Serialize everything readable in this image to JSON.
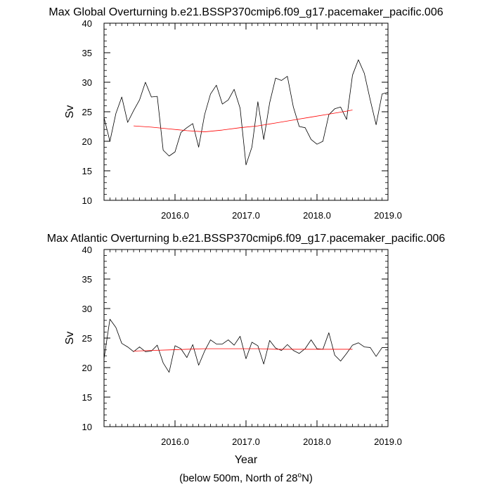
{
  "chart_data": [
    {
      "type": "line",
      "title": "Max Global Overturning b.e21.BSSP370cmip6.f09_g17.pacemaker_pacific.006",
      "xlabel": "",
      "ylabel": "Sv",
      "xlim": [
        2015.0,
        2019.0
      ],
      "ylim": [
        10,
        40
      ],
      "xticks": [
        2016.0,
        2017.0,
        2018.0,
        2019.0
      ],
      "xtick_labels": [
        "2016.0",
        "2017.0",
        "2018.0",
        "2019.0"
      ],
      "yticks": [
        10,
        15,
        20,
        25,
        30,
        35,
        40
      ],
      "ytick_labels": [
        "10",
        "15",
        "20",
        "25",
        "30",
        "35",
        "40"
      ],
      "grid": false,
      "series": [
        {
          "name": "monthly",
          "color": "#000000",
          "x": [
            2015.0,
            2015.083,
            2015.167,
            2015.25,
            2015.333,
            2015.417,
            2015.5,
            2015.583,
            2015.667,
            2015.75,
            2015.833,
            2015.917,
            2016.0,
            2016.083,
            2016.167,
            2016.25,
            2016.333,
            2016.417,
            2016.5,
            2016.583,
            2016.667,
            2016.75,
            2016.833,
            2016.917,
            2017.0,
            2017.083,
            2017.167,
            2017.25,
            2017.333,
            2017.417,
            2017.5,
            2017.583,
            2017.667,
            2017.75,
            2017.833,
            2017.917,
            2018.0,
            2018.083,
            2018.167,
            2018.25,
            2018.333,
            2018.417,
            2018.5,
            2018.583,
            2018.667,
            2018.75,
            2018.833,
            2018.917,
            2019.0
          ],
          "values": [
            24.0,
            20.0,
            24.7,
            27.5,
            23.2,
            25.2,
            27.0,
            30.0,
            27.5,
            27.6,
            18.5,
            17.5,
            18.2,
            21.5,
            22.3,
            23.0,
            19.0,
            24.5,
            28.0,
            29.5,
            26.3,
            27.0,
            28.8,
            25.6,
            16.0,
            19.0,
            26.7,
            20.3,
            26.5,
            30.7,
            30.3,
            31.0,
            25.8,
            22.5,
            22.3,
            20.3,
            19.5,
            20.0,
            24.5,
            25.5,
            25.8,
            23.7,
            31.2,
            33.8,
            31.5,
            27.0,
            22.8,
            28.0,
            28.3
          ]
        },
        {
          "name": "smoothed",
          "color": "#ff0000",
          "x": [
            2015.417,
            2015.667,
            2015.917,
            2016.167,
            2016.417,
            2016.667,
            2016.917,
            2017.167,
            2017.417,
            2017.667,
            2017.917,
            2018.167,
            2018.417,
            2018.5
          ],
          "values": [
            22.6,
            22.4,
            22.1,
            21.8,
            21.6,
            21.9,
            22.3,
            22.6,
            23.1,
            23.6,
            24.1,
            24.6,
            25.1,
            25.3
          ]
        }
      ]
    },
    {
      "type": "line",
      "title": "Max Atlantic Overturning b.e21.BSSP370cmip6.f09_g17.pacemaker_pacific.006",
      "xlabel": "Year",
      "ylabel": "Sv",
      "xlim": [
        2015.0,
        2019.0
      ],
      "ylim": [
        10,
        40
      ],
      "xticks": [
        2016.0,
        2017.0,
        2018.0,
        2019.0
      ],
      "xtick_labels": [
        "2016.0",
        "2017.0",
        "2018.0",
        "2019.0"
      ],
      "yticks": [
        10,
        15,
        20,
        25,
        30,
        35,
        40
      ],
      "ytick_labels": [
        "10",
        "15",
        "20",
        "25",
        "30",
        "35",
        "40"
      ],
      "grid": false,
      "series": [
        {
          "name": "monthly",
          "color": "#000000",
          "x": [
            2015.0,
            2015.083,
            2015.167,
            2015.25,
            2015.333,
            2015.417,
            2015.5,
            2015.583,
            2015.667,
            2015.75,
            2015.833,
            2015.917,
            2016.0,
            2016.083,
            2016.167,
            2016.25,
            2016.333,
            2016.417,
            2016.5,
            2016.583,
            2016.667,
            2016.75,
            2016.833,
            2016.917,
            2017.0,
            2017.083,
            2017.167,
            2017.25,
            2017.333,
            2017.417,
            2017.5,
            2017.583,
            2017.667,
            2017.75,
            2017.833,
            2017.917,
            2018.0,
            2018.083,
            2018.167,
            2018.25,
            2018.333,
            2018.417,
            2018.5,
            2018.583,
            2018.667,
            2018.75,
            2018.833,
            2018.917,
            2019.0
          ],
          "values": [
            21.5,
            28.2,
            26.8,
            24.1,
            23.5,
            22.7,
            23.5,
            22.7,
            22.8,
            23.8,
            20.8,
            19.2,
            23.7,
            23.2,
            21.7,
            23.9,
            20.4,
            22.8,
            24.7,
            24.0,
            24.0,
            24.7,
            23.8,
            25.3,
            21.5,
            24.3,
            23.7,
            20.6,
            24.6,
            23.3,
            22.9,
            23.9,
            22.9,
            22.4,
            23.2,
            24.7,
            23.2,
            23.1,
            25.9,
            22.1,
            21.1,
            22.4,
            23.8,
            24.2,
            23.5,
            23.4,
            21.9,
            23.4,
            23.4
          ]
        },
        {
          "name": "smoothed",
          "color": "#ff0000",
          "x": [
            2015.417,
            2015.667,
            2015.917,
            2016.167,
            2016.417,
            2016.667,
            2016.917,
            2017.167,
            2017.417,
            2017.667,
            2017.917,
            2018.167,
            2018.417,
            2018.5
          ],
          "values": [
            22.8,
            22.9,
            23.0,
            23.1,
            23.2,
            23.2,
            23.2,
            23.2,
            23.1,
            23.1,
            23.1,
            23.1,
            23.1,
            23.1
          ]
        }
      ]
    }
  ],
  "footer": {
    "prefix": "(below 500m, North of 28",
    "degree": "o",
    "suffix": "N)"
  }
}
